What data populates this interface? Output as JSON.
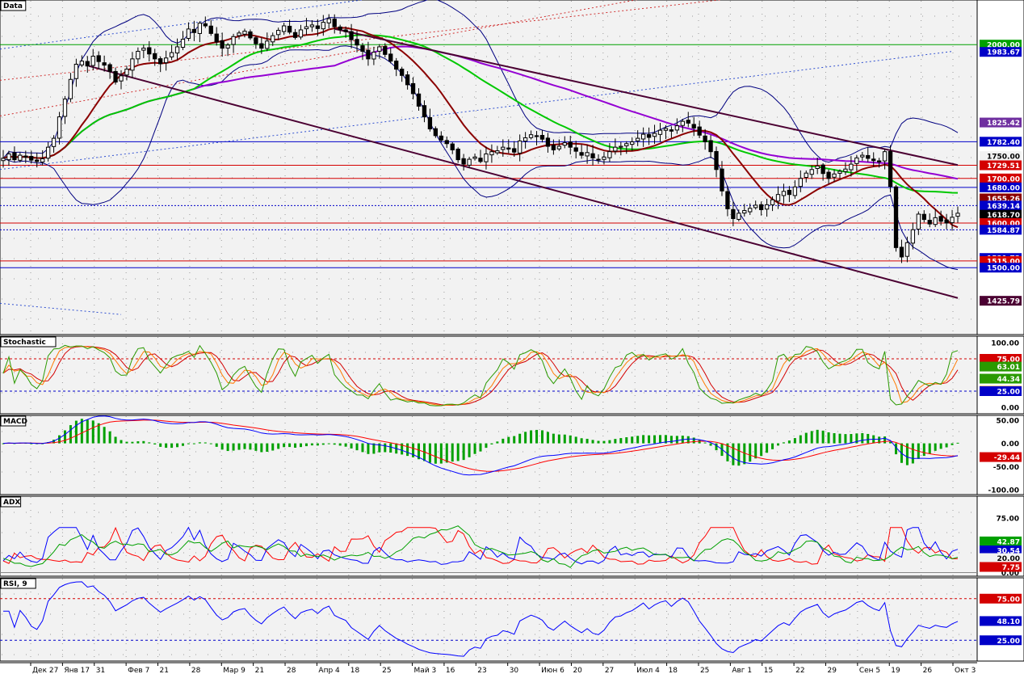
{
  "colors": {
    "background": "#f2f2f2",
    "grid": "#9a9a9a",
    "up_candle": "#ffffff",
    "down_candle": "#000000",
    "bollinger": "#000080",
    "sma_short": "#8b0000",
    "sma_mid": "#00c800",
    "sma_long": "#9400d3",
    "channel": "#4b0032",
    "stoch_k": "#2a9a00",
    "stoch_d1": "#ff7a00",
    "stoch_d2": "#d40000",
    "macd_line": "#0000ff",
    "signal_line": "#ff0000",
    "macd_hist": "#00a000",
    "adx_line": "#00a000",
    "di_plus": "#0000ff",
    "di_minus": "#ff0000",
    "rsi_line": "#0000ff"
  },
  "panes": [
    {
      "id": "price",
      "title": "Data"
    },
    {
      "id": "stoch",
      "title": "Stochastic"
    },
    {
      "id": "macd",
      "title": "MACD"
    },
    {
      "id": "adx",
      "title": "ADX"
    },
    {
      "id": "rsi",
      "title": "RSI, 9"
    }
  ],
  "x_axis_labels": [
    "Дек 27",
    "Янв 17",
    "31",
    "Фев 7",
    "21",
    "28",
    "Мар 9",
    "21",
    "28",
    "Апр 4",
    "18",
    "25",
    "Май 3",
    "16",
    "23",
    "30",
    "Июн 6",
    "20",
    "27",
    "Июл 4",
    "18",
    "25",
    "Авг 1",
    "15",
    "22",
    "29",
    "Сен 5",
    "19",
    "26",
    "Окт 3"
  ],
  "chart_data": [
    {
      "pane": "price",
      "type": "candlestick",
      "yrange": [
        1350,
        2100
      ],
      "closes": [
        1745,
        1755,
        1742,
        1752,
        1748,
        1741,
        1738,
        1744,
        1770,
        1790,
        1838,
        1878,
        1922,
        1956,
        1963,
        1952,
        1974,
        1962,
        1954,
        1940,
        1916,
        1930,
        1945,
        1968,
        1985,
        1992,
        1979,
        1968,
        1957,
        1970,
        1982,
        1995,
        2012,
        2035,
        2027,
        2048,
        2042,
        2025,
        2006,
        1992,
        1999,
        2018,
        2026,
        2030,
        2015,
        2002,
        1992,
        2008,
        2020,
        2032,
        2042,
        2028,
        2016,
        2033,
        2040,
        2044,
        2036,
        2050,
        2058,
        2040,
        2034,
        2029,
        2011,
        1999,
        1985,
        1968,
        1983,
        1995,
        1978,
        1963,
        1945,
        1931,
        1910,
        1890,
        1862,
        1838,
        1811,
        1796,
        1786,
        1778,
        1764,
        1742,
        1732,
        1743,
        1748,
        1738,
        1755,
        1760,
        1762,
        1770,
        1766,
        1759,
        1784,
        1791,
        1798,
        1794,
        1788,
        1772,
        1764,
        1772,
        1780,
        1770,
        1761,
        1752,
        1758,
        1746,
        1742,
        1748,
        1760,
        1770,
        1772,
        1778,
        1782,
        1790,
        1799,
        1792,
        1801,
        1808,
        1812,
        1806,
        1818,
        1828,
        1824,
        1813,
        1797,
        1782,
        1760,
        1720,
        1672,
        1632,
        1610,
        1622,
        1628,
        1633,
        1640,
        1630,
        1641,
        1652,
        1664,
        1671,
        1664,
        1681,
        1700,
        1712,
        1720,
        1728,
        1711,
        1700,
        1710,
        1716,
        1721,
        1732,
        1746,
        1752,
        1745,
        1740,
        1737,
        1760,
        1682,
        1545,
        1524,
        1556,
        1585,
        1620,
        1608,
        1598,
        1612,
        1604,
        1600,
        1613,
        1622
      ],
      "current_price": 1618.7,
      "price_tags": [
        {
          "label": "2000.00",
          "color": "#00a000"
        },
        {
          "label": "1983.67",
          "color": "#0000c8"
        },
        {
          "label": "1825.42",
          "color": "#7030a0"
        },
        {
          "label": "1782.40",
          "color": "#0000c8"
        },
        {
          "label": "1750.00",
          "color": "#f2f2f2"
        },
        {
          "label": "1729.51",
          "color": "#d40000"
        },
        {
          "label": "1700.00",
          "color": "#d40000"
        },
        {
          "label": "1680.00",
          "color": "#0000c8"
        },
        {
          "label": "1655.26",
          "color": "#8b0000"
        },
        {
          "label": "1639.14",
          "color": "#0000c8"
        },
        {
          "label": "1618.70",
          "color": "#000000"
        },
        {
          "label": "1600.00",
          "color": "#d40000"
        },
        {
          "label": "1584.87",
          "color": "#0000c8"
        },
        {
          "label": "1521.73",
          "color": "#0000c8"
        },
        {
          "label": "1515.00",
          "color": "#d40000"
        },
        {
          "label": "1500.00",
          "color": "#0000c8"
        },
        {
          "label": "1425.79",
          "color": "#4b0032"
        }
      ]
    },
    {
      "pane": "stoch",
      "type": "line",
      "yrange": [
        -10,
        110
      ],
      "tick_labels": [
        "100.00",
        "0.00"
      ],
      "levels": [
        75,
        25
      ],
      "tags": [
        {
          "label": "75.00",
          "color": "#d40000"
        },
        {
          "label": "63.01",
          "color": "#2a9a00"
        },
        {
          "label": "44.34",
          "color": "#2a9a00"
        },
        {
          "label": "25.55",
          "color": "#ff7a00"
        },
        {
          "label": "25.00",
          "color": "#0000c8"
        }
      ]
    },
    {
      "pane": "macd",
      "type": "line",
      "yrange": [
        -110,
        60
      ],
      "tick_labels": [
        "50.00",
        "0.00",
        "-50.00",
        "-100.00"
      ],
      "tags": [
        {
          "label": "-29.44",
          "color": "#d40000"
        }
      ]
    },
    {
      "pane": "adx",
      "type": "line",
      "yrange": [
        -5,
        105
      ],
      "tick_labels": [
        "75.00",
        "0.00"
      ],
      "tags": [
        {
          "label": "42.87",
          "color": "#00a000"
        },
        {
          "label": "30.54",
          "color": "#0000c8"
        },
        {
          "label": "20.00",
          "color": "#f2f2f2"
        },
        {
          "label": "7.75",
          "color": "#d40000"
        }
      ]
    },
    {
      "pane": "rsi",
      "type": "line",
      "yrange": [
        0,
        100
      ],
      "levels": [
        75,
        25
      ],
      "tags": [
        {
          "label": "75.00",
          "color": "#d40000"
        },
        {
          "label": "48.10",
          "color": "#0000c8"
        },
        {
          "label": "25.00",
          "color": "#0000c8"
        }
      ]
    }
  ]
}
